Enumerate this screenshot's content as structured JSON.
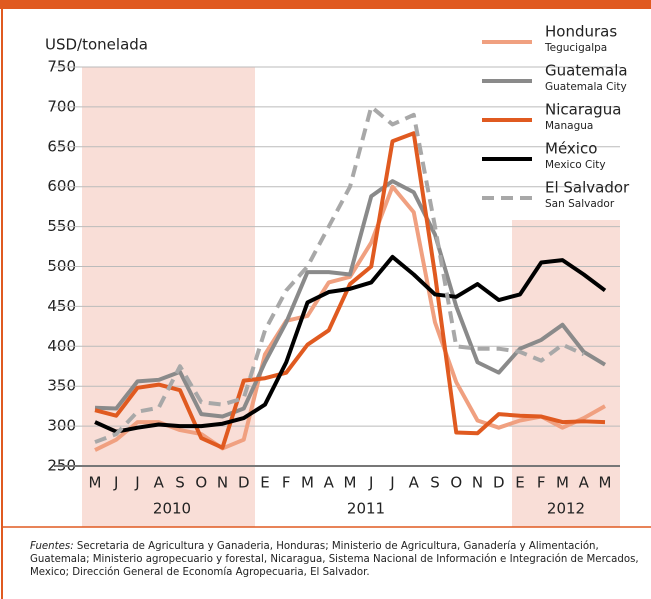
{
  "chart_data": {
    "type": "line",
    "y_label": "USD/tonelada",
    "categories": [
      "M",
      "J",
      "J",
      "A",
      "S",
      "O",
      "N",
      "D",
      "E",
      "F",
      "M",
      "A",
      "M",
      "J",
      "J",
      "A",
      "S",
      "O",
      "N",
      "D",
      "E",
      "F",
      "M",
      "A",
      "M"
    ],
    "years": [
      "2010",
      "2011",
      "2012"
    ],
    "ylim": [
      250,
      750
    ],
    "yticks": [
      250,
      300,
      350,
      400,
      450,
      500,
      550,
      600,
      650,
      700,
      750
    ],
    "grid": true,
    "legend": "top-right",
    "series": [
      {
        "name": "Honduras",
        "city": "Tegucigalpa",
        "color": "#f0a080",
        "dash": false,
        "values": [
          270,
          283,
          305,
          305,
          295,
          290,
          272,
          283,
          390,
          432,
          438,
          480,
          487,
          530,
          600,
          568,
          430,
          355,
          307,
          298,
          307,
          312,
          298,
          310,
          325
        ]
      },
      {
        "name": "Guatemala",
        "city": "Guatemala City",
        "color": "#8a8a8a",
        "dash": false,
        "values": [
          323,
          322,
          356,
          358,
          368,
          315,
          312,
          322,
          380,
          430,
          493,
          493,
          490,
          588,
          607,
          593,
          540,
          450,
          380,
          367,
          397,
          408,
          427,
          393,
          377
        ]
      },
      {
        "name": "Nicaragua",
        "city": "Managua",
        "color": "#e05a20",
        "dash": false,
        "values": [
          320,
          313,
          348,
          352,
          345,
          285,
          273,
          357,
          360,
          367,
          402,
          420,
          478,
          500,
          657,
          667,
          490,
          292,
          291,
          315,
          313,
          312,
          305,
          306,
          305
        ]
      },
      {
        "name": "México",
        "city": "Mexico City",
        "color": "#000000",
        "dash": false,
        "values": [
          305,
          293,
          298,
          302,
          300,
          300,
          303,
          310,
          327,
          380,
          455,
          468,
          472,
          480,
          512,
          490,
          465,
          462,
          478,
          458,
          465,
          505,
          508,
          490,
          470
        ]
      },
      {
        "name": "El Salvador",
        "city": "San Salvador",
        "color": "#a8a8a8",
        "dash": true,
        "values": [
          280,
          290,
          318,
          323,
          375,
          330,
          327,
          335,
          420,
          470,
          500,
          550,
          600,
          700,
          678,
          690,
          550,
          400,
          397,
          397,
          393,
          382,
          402,
          390,
          null
        ]
      }
    ],
    "source_label": "Fuentes:",
    "source": "Secretaria de Agricultura y Ganaderia, Honduras; Ministerio de Agricultura, Ganadería y Alimentación, Guatemala; Ministerio agropecuario y forestal, Nicaragua, Sistema Nacional de Información e Integración de Mercados, Mexico; Dirección General de Economía Agropecuaria, El Salvador."
  }
}
